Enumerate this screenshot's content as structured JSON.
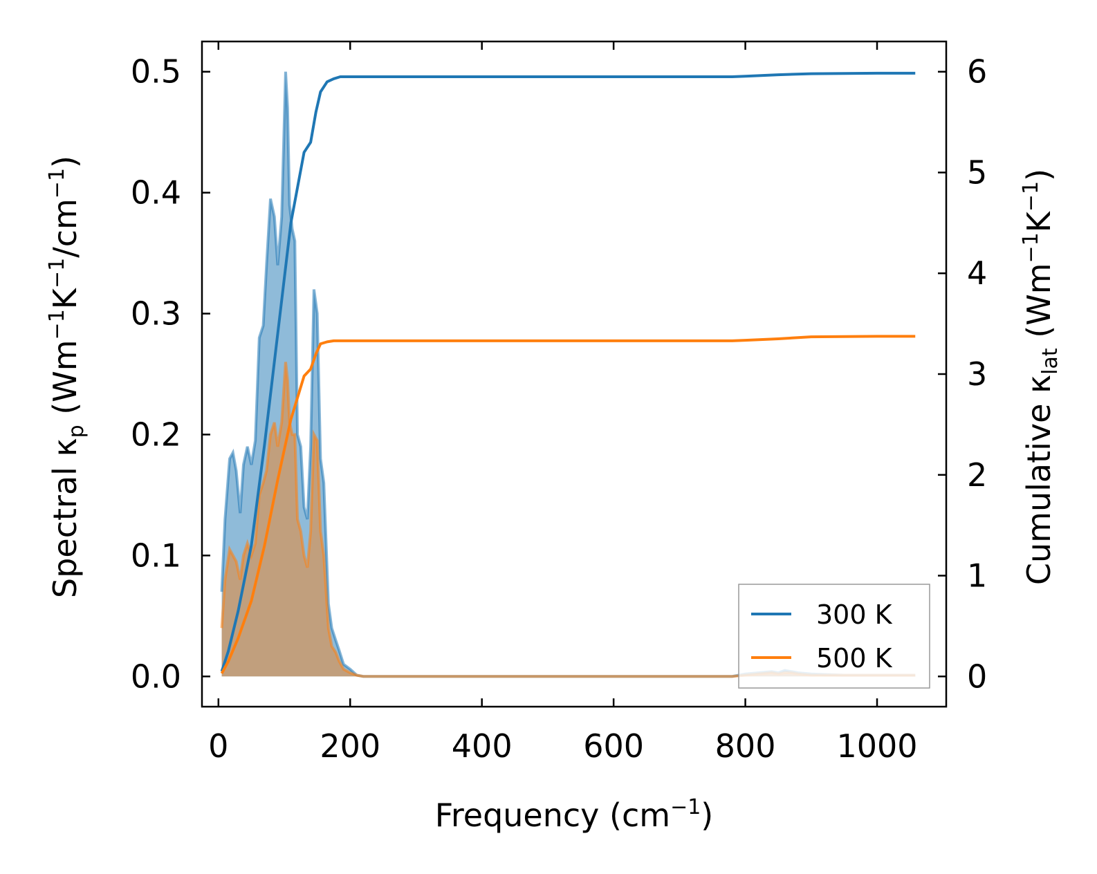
{
  "chart_data": {
    "type": "line",
    "xlabel": {
      "text": "Frequency (cm",
      "sup": "−1",
      "end": ")"
    },
    "ylabel_left": {
      "prefix": "Spectral κ",
      "sub": "p",
      "mid": " (Wm",
      "sup1": "−1",
      "k": "K",
      "sup2": "−1",
      "tail": "/cm",
      "sup3": "−1",
      "end": ")"
    },
    "ylabel_right": {
      "prefix": "Cumulative κ",
      "sub": "lat",
      "mid": " (Wm",
      "sup1": "−1",
      "k": "K",
      "sup2": "−1",
      "end": ")"
    },
    "xlim": [
      -25,
      1105
    ],
    "ylim_left": [
      -0.025,
      0.525
    ],
    "ylim_right": [
      -0.3,
      6.3
    ],
    "x_ticks": [
      0,
      200,
      400,
      600,
      800,
      1000
    ],
    "x_tick_labels": [
      "0",
      "200",
      "400",
      "600",
      "800",
      "1000"
    ],
    "y_left_ticks": [
      0.0,
      0.1,
      0.2,
      0.3,
      0.4,
      0.5
    ],
    "y_left_tick_labels": [
      "0.0",
      "0.1",
      "0.2",
      "0.3",
      "0.4",
      "0.5"
    ],
    "y_right_ticks": [
      0,
      1,
      2,
      3,
      4,
      5,
      6
    ],
    "y_right_tick_labels": [
      "0",
      "1",
      "2",
      "3",
      "4",
      "5",
      "6"
    ],
    "legend_position": "bottom-right",
    "series": [
      {
        "name": "300 K",
        "color": "#1f77b4",
        "spectral": {
          "axis": "left",
          "x": [
            5,
            10,
            17,
            22,
            27,
            33,
            38,
            44,
            50,
            56,
            62,
            68,
            73,
            79,
            85,
            90,
            96,
            102,
            105,
            108,
            112,
            116,
            120,
            125,
            130,
            135,
            140,
            145,
            150,
            155,
            160,
            167,
            172,
            178,
            183,
            190,
            200,
            210,
            220,
            250,
            300,
            400,
            500,
            600,
            700,
            780,
            800,
            820,
            840,
            850,
            860,
            870,
            880,
            900,
            950,
            1000,
            1058
          ],
          "y": [
            0.07,
            0.13,
            0.18,
            0.185,
            0.17,
            0.135,
            0.175,
            0.19,
            0.175,
            0.195,
            0.28,
            0.29,
            0.34,
            0.395,
            0.38,
            0.34,
            0.38,
            0.5,
            0.47,
            0.39,
            0.37,
            0.36,
            0.2,
            0.19,
            0.14,
            0.13,
            0.19,
            0.32,
            0.3,
            0.18,
            0.16,
            0.06,
            0.04,
            0.03,
            0.022,
            0.01,
            0.006,
            0.001,
            0,
            0,
            0,
            0,
            0,
            0,
            0,
            0,
            0.002,
            0.003,
            0.004,
            0.003,
            0.005,
            0.004,
            0.003,
            0.002,
            0.001,
            0.001,
            0.001
          ]
        },
        "cumulative": {
          "axis": "right",
          "x": [
            5,
            15,
            30,
            50,
            70,
            90,
            110,
            130,
            140,
            148,
            155,
            165,
            175,
            185,
            200,
            250,
            400,
            600,
            780,
            800,
            850,
            900,
            1000,
            1058
          ],
          "y": [
            0.05,
            0.25,
            0.65,
            1.3,
            2.3,
            3.4,
            4.5,
            5.2,
            5.3,
            5.6,
            5.8,
            5.9,
            5.93,
            5.95,
            5.95,
            5.95,
            5.95,
            5.95,
            5.95,
            5.955,
            5.97,
            5.98,
            5.985,
            5.985
          ]
        }
      },
      {
        "name": "500 K",
        "color": "#ff7f0e",
        "spectral": {
          "axis": "left",
          "x": [
            5,
            10,
            17,
            22,
            27,
            33,
            38,
            44,
            50,
            56,
            62,
            68,
            73,
            79,
            85,
            90,
            96,
            102,
            105,
            108,
            112,
            116,
            120,
            125,
            130,
            135,
            140,
            145,
            150,
            155,
            160,
            167,
            172,
            178,
            183,
            190,
            200,
            210,
            220,
            250,
            300,
            400,
            500,
            600,
            700,
            780,
            800,
            820,
            840,
            850,
            860,
            870,
            880,
            900,
            950,
            1000,
            1058
          ],
          "y": [
            0.04,
            0.08,
            0.105,
            0.1,
            0.095,
            0.08,
            0.1,
            0.11,
            0.1,
            0.11,
            0.15,
            0.16,
            0.17,
            0.2,
            0.21,
            0.19,
            0.21,
            0.26,
            0.245,
            0.21,
            0.2,
            0.2,
            0.13,
            0.12,
            0.1,
            0.09,
            0.12,
            0.2,
            0.195,
            0.12,
            0.1,
            0.04,
            0.025,
            0.02,
            0.013,
            0.006,
            0.003,
            0.001,
            0,
            0,
            0,
            0,
            0,
            0,
            0,
            0,
            0.001,
            0.002,
            0.003,
            0.002,
            0.003,
            0.003,
            0.002,
            0.001,
            0.001,
            0.001,
            0.001
          ]
        },
        "cumulative": {
          "axis": "right",
          "x": [
            5,
            15,
            30,
            50,
            70,
            90,
            110,
            130,
            140,
            148,
            155,
            165,
            175,
            185,
            200,
            250,
            400,
            600,
            780,
            800,
            850,
            900,
            1000,
            1058
          ],
          "y": [
            0.03,
            0.15,
            0.38,
            0.75,
            1.3,
            1.95,
            2.55,
            2.98,
            3.05,
            3.2,
            3.3,
            3.32,
            3.33,
            3.33,
            3.33,
            3.33,
            3.33,
            3.33,
            3.33,
            3.335,
            3.35,
            3.37,
            3.375,
            3.375
          ]
        }
      }
    ]
  }
}
